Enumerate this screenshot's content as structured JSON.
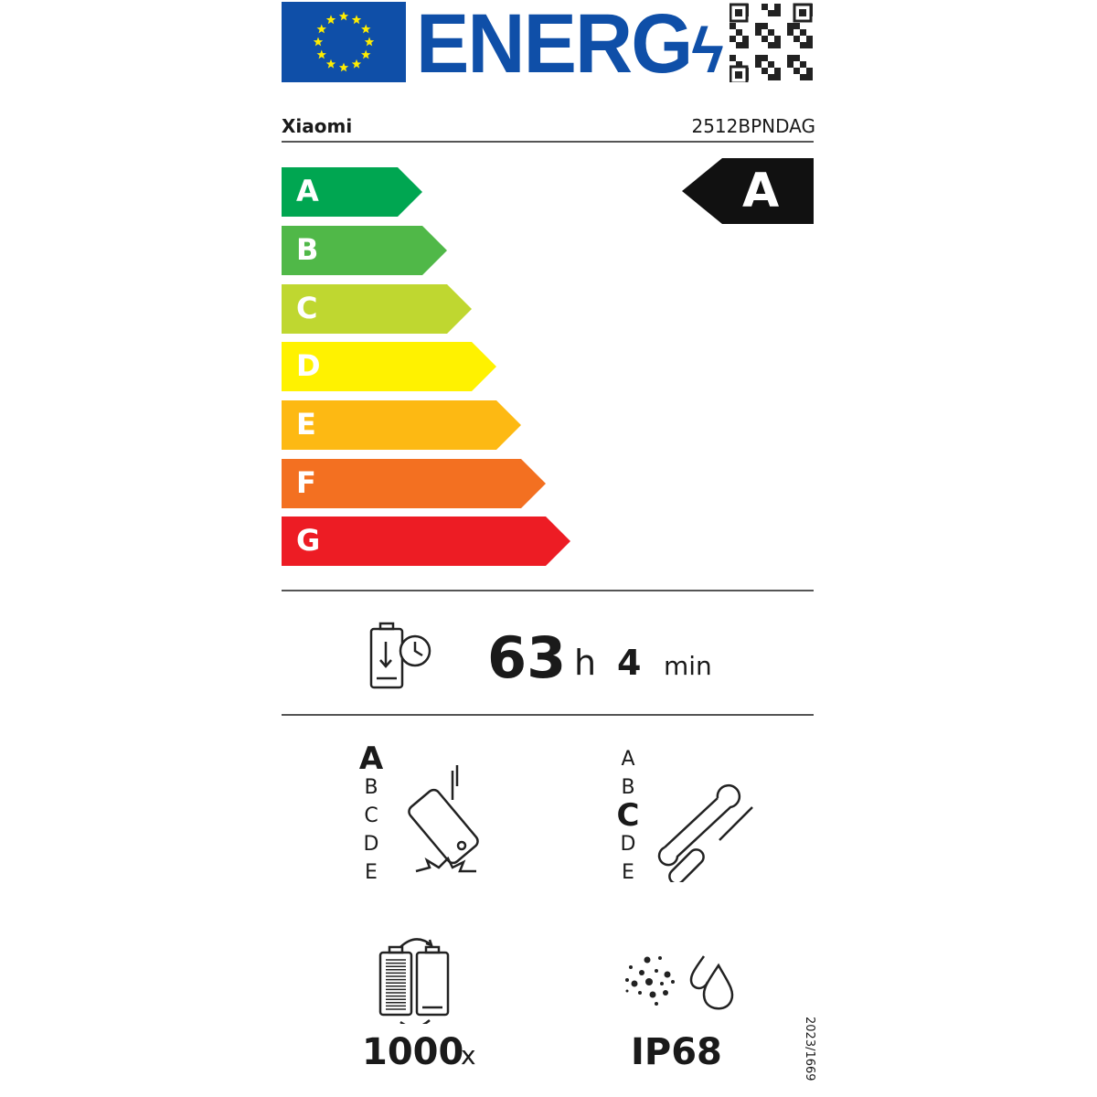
{
  "header": {
    "logo_text": "ENERG",
    "brand": "Xiaomi",
    "model": "2512BPNDAG"
  },
  "energy_scale": {
    "classes": [
      {
        "label": "A",
        "color": "#00a651"
      },
      {
        "label": "B",
        "color": "#50b848"
      },
      {
        "label": "C",
        "color": "#bfd730"
      },
      {
        "label": "D",
        "color": "#fff200"
      },
      {
        "label": "E",
        "color": "#fdb913"
      },
      {
        "label": "F",
        "color": "#f37021"
      },
      {
        "label": "G",
        "color": "#ed1c24"
      }
    ],
    "rating": "A"
  },
  "battery_endurance": {
    "icon": "battery-clock-icon",
    "hours": "63",
    "hours_unit": "h",
    "minutes": "4",
    "minutes_unit": "min"
  },
  "drop_resistance": {
    "icon": "phone-drop-icon",
    "scale": [
      "A",
      "B",
      "C",
      "D",
      "E"
    ],
    "rating": "A"
  },
  "repairability": {
    "icon": "wrench-screwdriver-icon",
    "scale": [
      "A",
      "B",
      "C",
      "D",
      "E"
    ],
    "rating": "C"
  },
  "battery_cycles": {
    "icon": "battery-cycle-icon",
    "value": "1000",
    "unit": "x"
  },
  "ingress_protection": {
    "icon": "dust-water-icon",
    "value": "IP68"
  },
  "regulation": "2023/1669"
}
